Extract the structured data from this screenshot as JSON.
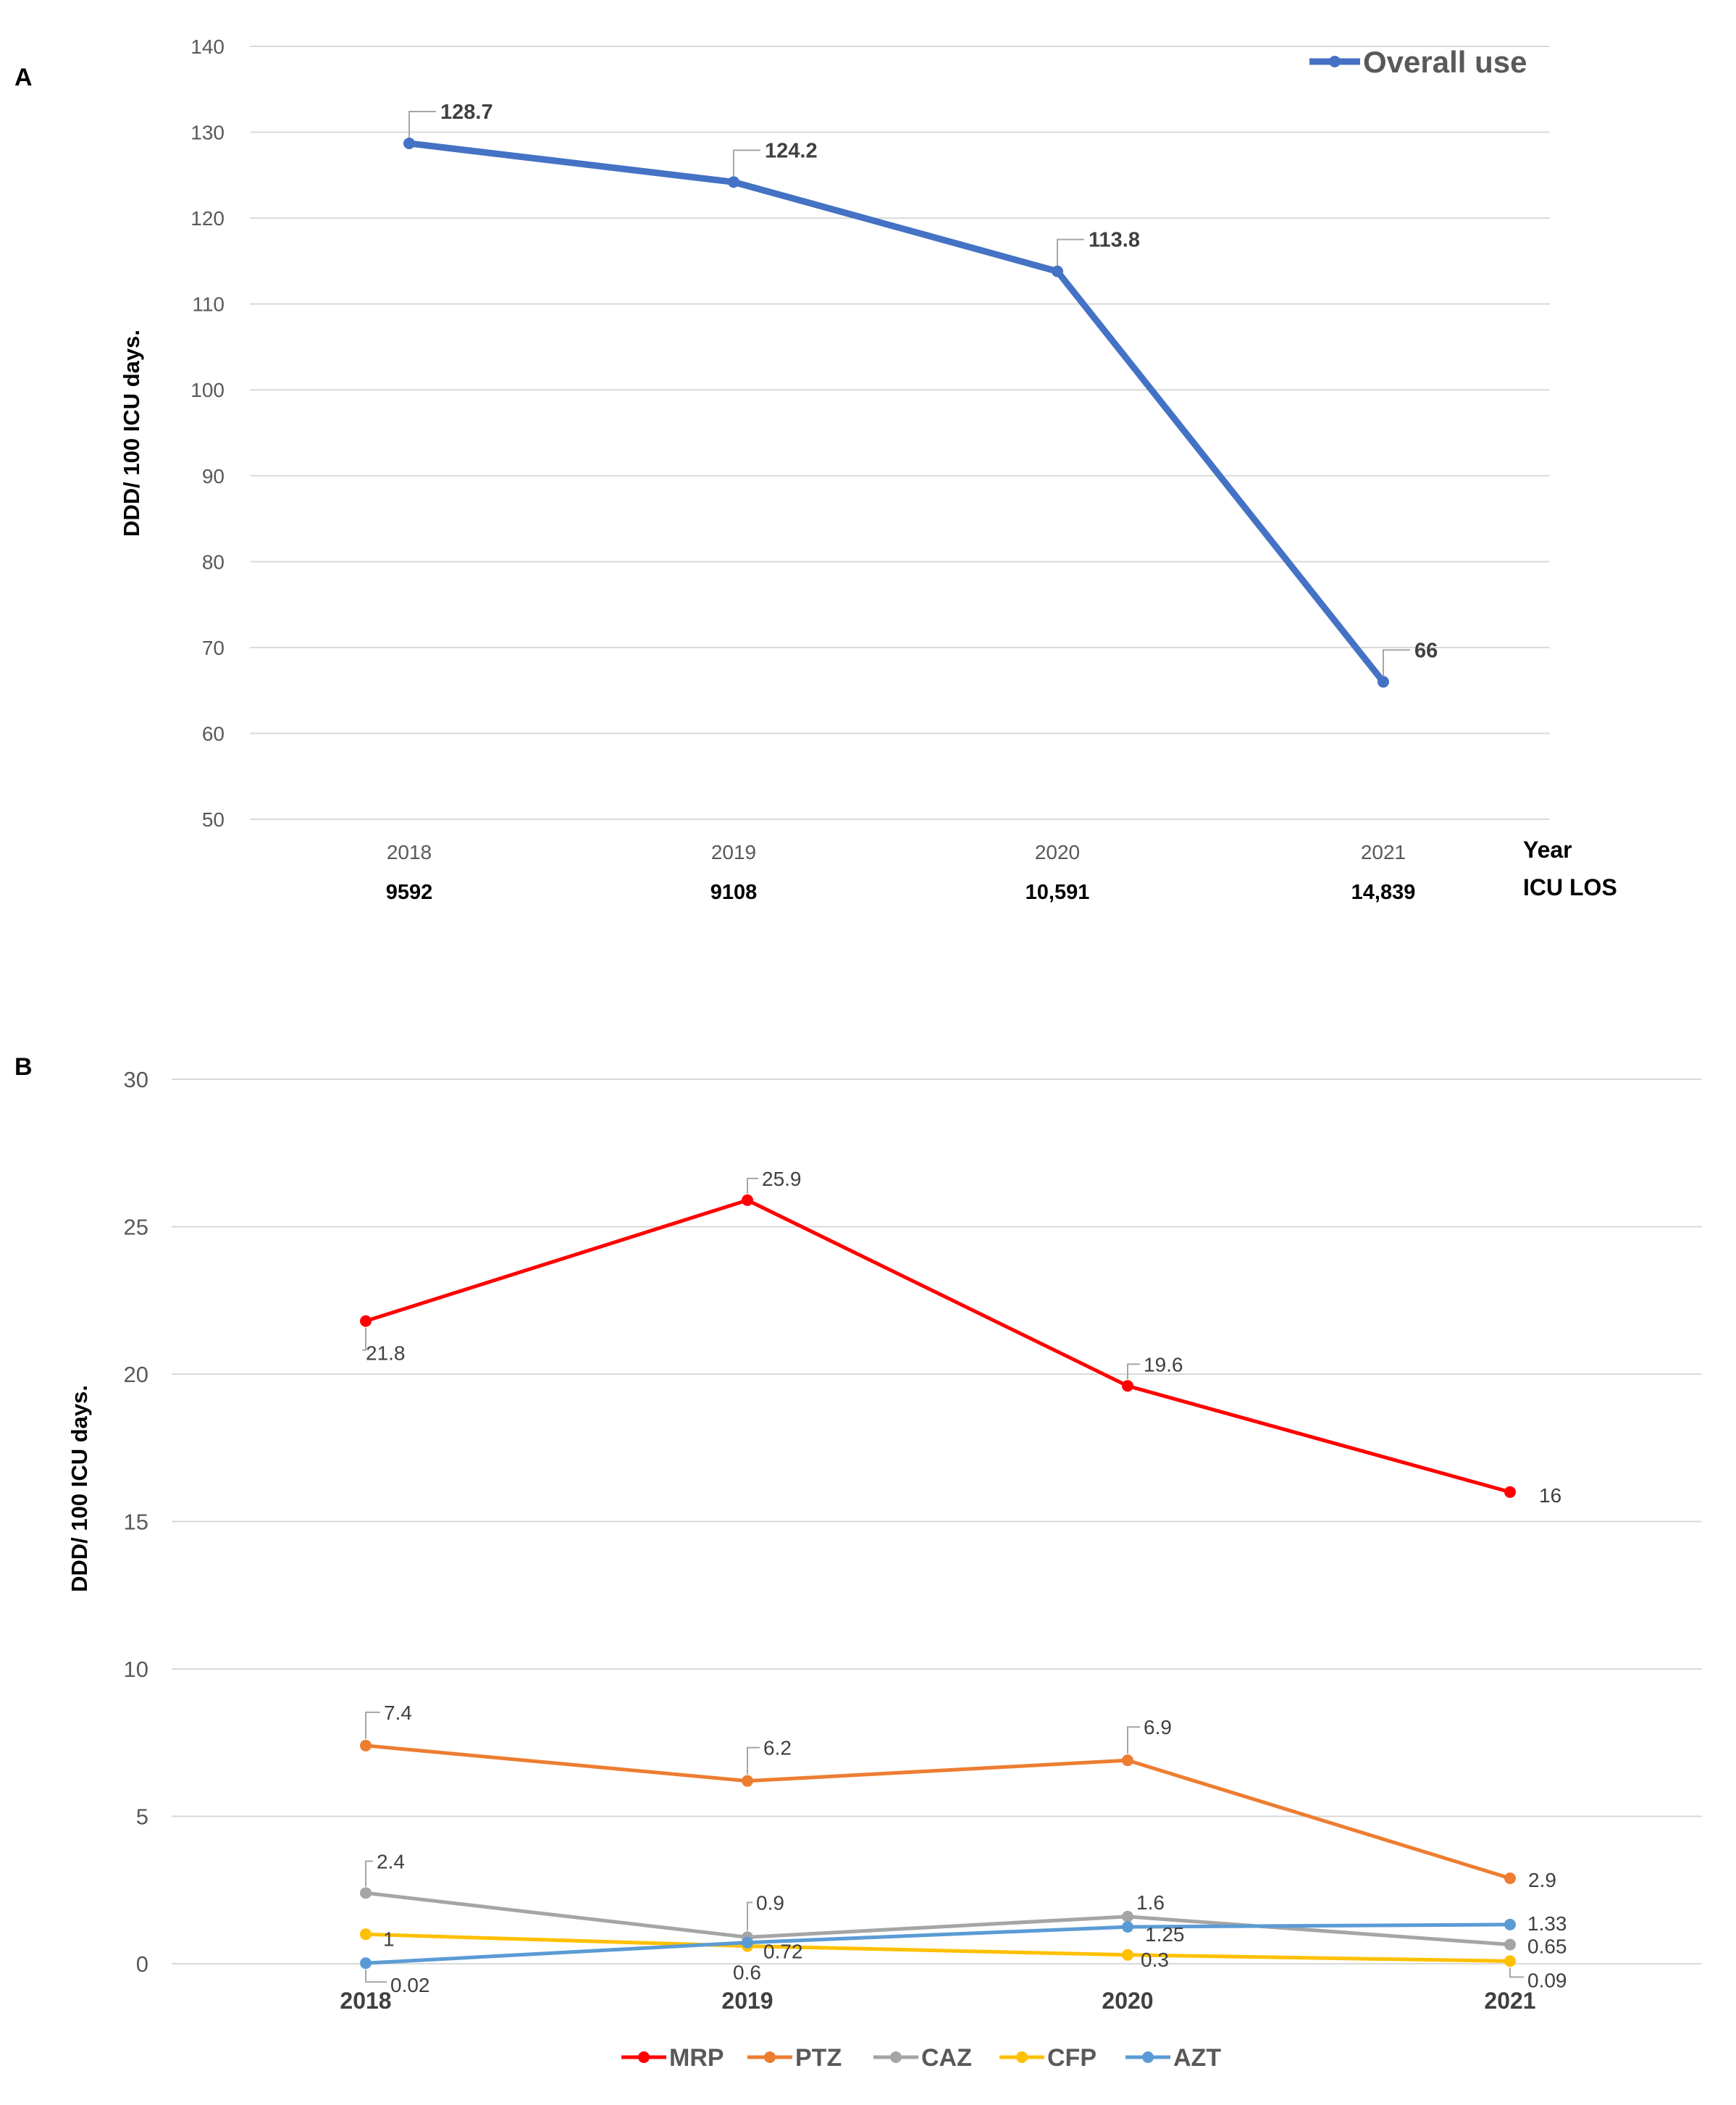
{
  "chart_data": [
    {
      "type": "line",
      "panel": "A",
      "title": "",
      "xlabel": "Year",
      "ylabel": "DDD/ 100 ICU days.",
      "ylim": [
        50,
        140
      ],
      "yticks": [
        50,
        60,
        70,
        80,
        90,
        100,
        110,
        120,
        130,
        140
      ],
      "categories": [
        "2018",
        "2019",
        "2020",
        "2021"
      ],
      "secondary_row_label": "ICU LOS",
      "secondary_row": [
        "9592",
        "9108",
        "10,591",
        "14,839"
      ],
      "legend": "top-right",
      "grid": true,
      "series": [
        {
          "name": "Overall use",
          "color": "#4472c4",
          "values": [
            128.7,
            124.2,
            113.8,
            66
          ],
          "labels": [
            "128.7",
            "124.2",
            "113.8",
            "66"
          ]
        }
      ]
    },
    {
      "type": "line",
      "panel": "B",
      "title": "",
      "xlabel": "",
      "ylabel": "DDD/ 100 ICU days.",
      "ylim": [
        0,
        30
      ],
      "yticks": [
        0,
        5,
        10,
        15,
        20,
        25,
        30
      ],
      "categories": [
        "2018",
        "2019",
        "2020",
        "2021"
      ],
      "legend": "bottom",
      "grid": true,
      "series": [
        {
          "name": "MRP",
          "color": "#ff0000",
          "values": [
            21.8,
            25.9,
            19.6,
            16
          ],
          "labels": [
            "21.8",
            "25.9",
            "19.6",
            "16"
          ]
        },
        {
          "name": "PTZ",
          "color": "#ed7d31",
          "values": [
            7.4,
            6.2,
            6.9,
            2.9
          ],
          "labels": [
            "7.4",
            "6.2",
            "6.9",
            "2.9"
          ]
        },
        {
          "name": "CAZ",
          "color": "#a5a5a5",
          "values": [
            2.4,
            0.9,
            1.6,
            0.65
          ],
          "labels": [
            "2.4",
            "0.9",
            "1.6",
            "0.65"
          ]
        },
        {
          "name": "CFP",
          "color": "#ffc000",
          "values": [
            1,
            0.6,
            0.3,
            0.09
          ],
          "labels": [
            "1",
            "0.6",
            "0.3",
            "0.09"
          ]
        },
        {
          "name": "AZT",
          "color": "#5b9bd5",
          "values": [
            0.02,
            0.72,
            1.25,
            1.33
          ],
          "labels": [
            "0.02",
            "0.72",
            "1.25",
            "1.33"
          ]
        }
      ]
    }
  ]
}
